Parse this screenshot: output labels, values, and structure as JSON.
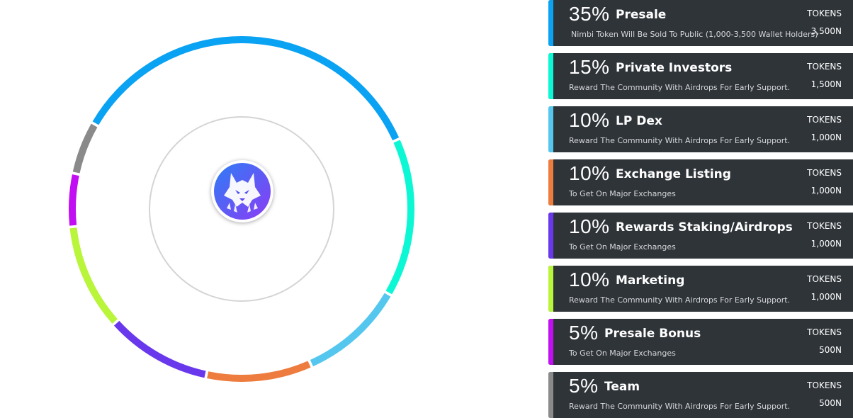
{
  "chart_data": {
    "type": "pie",
    "style": "donut-ring",
    "legend_placement": "right",
    "slices": [
      {
        "label": "Presale",
        "value": 35,
        "percent_label": "35%",
        "color": "#0aa2f2",
        "description": "Nimbi Token Will Be Sold To Public (1,000-3,500 Wallet Holders)",
        "tokens_label": "TOKENS",
        "tokens": "3,500N"
      },
      {
        "label": "Private Investors",
        "value": 15,
        "percent_label": "15%",
        "color": "#0cf7d3",
        "description": "Reward The Community With Airdrops For Early Support.",
        "tokens_label": "TOKENS",
        "tokens": "1,500N"
      },
      {
        "label": "LP Dex",
        "value": 10,
        "percent_label": "10%",
        "color": "#55c7ef",
        "description": "Reward The Community With Airdrops For Early Support.",
        "tokens_label": "TOKENS",
        "tokens": "1,000N"
      },
      {
        "label": "Exchange Listing",
        "value": 10,
        "percent_label": "10%",
        "color": "#ed7c3e",
        "description": "To Get On Major Exchanges",
        "tokens_label": "TOKENS",
        "tokens": "1,000N"
      },
      {
        "label": "Rewards Staking/Airdrops",
        "value": 10,
        "percent_label": "10%",
        "color": "#6938ec",
        "description": "To Get On Major Exchanges",
        "tokens_label": "TOKENS",
        "tokens": "1,000N"
      },
      {
        "label": "Marketing",
        "value": 10,
        "percent_label": "10%",
        "color": "#b9f53a",
        "description": "Reward The Community With Airdrops For Early Support.",
        "tokens_label": "TOKENS",
        "tokens": "1,000N"
      },
      {
        "label": "Presale Bonus",
        "value": 5,
        "percent_label": "5%",
        "color": "#c20ef2",
        "description": "To Get On Major Exchanges",
        "tokens_label": "TOKENS",
        "tokens": "500N"
      },
      {
        "label": "Team",
        "value": 5,
        "percent_label": "5%",
        "color": "#8a8a8a",
        "description": "Reward The Community With Airdrops For Early Support.",
        "tokens_label": "TOKENS",
        "tokens": "500N"
      }
    ]
  },
  "colors": {
    "card_background": "#2f3439",
    "inner_ring": "#d4d4d4",
    "logo_gradient_start": "#2d7df5",
    "logo_gradient_end": "#8b3cf5"
  },
  "icons": {
    "center_logo": "wolf-logo-icon"
  }
}
